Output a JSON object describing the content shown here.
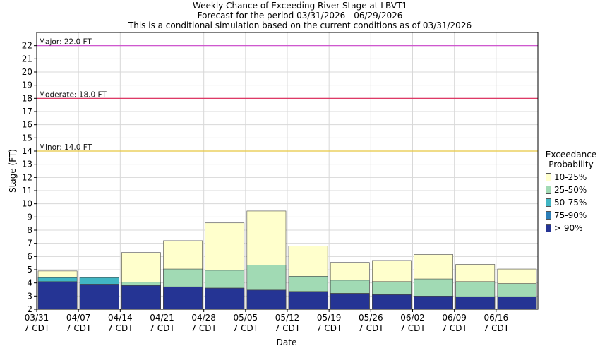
{
  "chart_data": {
    "type": "bar",
    "title": "Weekly Chance of Exceeding River Stage at LBVT1",
    "subtitle": "Forecast for the period 03/31/2026 - 06/29/2026",
    "subtitle2": "This is a conditional simulation based on the current conditions as of 03/31/2026",
    "xlabel": "Date",
    "ylabel": "Stage (FT)",
    "ylim": [
      2,
      23
    ],
    "yticks": [
      2,
      3,
      4,
      5,
      6,
      7,
      8,
      9,
      10,
      11,
      12,
      13,
      14,
      15,
      16,
      17,
      18,
      19,
      20,
      21,
      22
    ],
    "x_ticks": [
      {
        "line1": "03/31",
        "line2": "7 CDT"
      },
      {
        "line1": "04/07",
        "line2": "7 CDT"
      },
      {
        "line1": "04/14",
        "line2": "7 CDT"
      },
      {
        "line1": "04/21",
        "line2": "7 CDT"
      },
      {
        "line1": "04/28",
        "line2": "7 CDT"
      },
      {
        "line1": "05/05",
        "line2": "7 CDT"
      },
      {
        "line1": "05/12",
        "line2": "7 CDT"
      },
      {
        "line1": "05/19",
        "line2": "7 CDT"
      },
      {
        "line1": "05/26",
        "line2": "7 CDT"
      },
      {
        "line1": "06/02",
        "line2": "7 CDT"
      },
      {
        "line1": "06/09",
        "line2": "7 CDT"
      },
      {
        "line1": "06/16",
        "line2": "7 CDT"
      }
    ],
    "categories": [
      "03/31",
      "04/07",
      "04/14",
      "04/21",
      "04/28",
      "05/05",
      "05/12",
      "05/19",
      "05/26",
      "06/02",
      "06/09",
      "06/16"
    ],
    "series": [
      {
        "name": "> 90%",
        "color": "#253494",
        "values": [
          4.1,
          3.9,
          3.8,
          3.7,
          3.6,
          3.45,
          3.35,
          3.2,
          3.1,
          3.0,
          2.95,
          2.95
        ]
      },
      {
        "name": "75-90%",
        "color": "#2c7fb8",
        "values": [
          4.1,
          3.9,
          3.8,
          3.7,
          3.6,
          3.45,
          3.35,
          3.2,
          3.1,
          3.0,
          2.95,
          2.95
        ]
      },
      {
        "name": "50-75%",
        "color": "#41b6c4",
        "values": [
          4.4,
          4.4,
          3.85,
          3.7,
          3.6,
          3.45,
          3.35,
          3.2,
          3.1,
          3.0,
          2.95,
          2.95
        ]
      },
      {
        "name": "25-50%",
        "color": "#a1dab4",
        "values": [
          4.4,
          4.4,
          4.05,
          5.05,
          4.95,
          5.35,
          4.5,
          4.2,
          4.1,
          4.3,
          4.1,
          3.95
        ]
      },
      {
        "name": "10-25%",
        "color": "#ffffcc",
        "values": [
          4.9,
          4.4,
          6.3,
          7.2,
          8.55,
          9.45,
          6.8,
          5.55,
          5.7,
          6.15,
          5.4,
          5.05
        ]
      }
    ],
    "thresholds": [
      {
        "label": "Major: 22.0 FT",
        "value": 22.0,
        "color": "#cc44cc"
      },
      {
        "label": "Moderate: 18.0 FT",
        "value": 18.0,
        "color": "#dd2255"
      },
      {
        "label": "Minor: 14.0 FT",
        "value": 14.0,
        "color": "#e8c840"
      }
    ],
    "legend": {
      "title_line1": "Exceedance",
      "title_line2": "Probability",
      "position": "right",
      "items": [
        {
          "label": "10-25%",
          "color": "#ffffcc"
        },
        {
          "label": "25-50%",
          "color": "#a1dab4"
        },
        {
          "label": "50-75%",
          "color": "#41b6c4"
        },
        {
          "label": "75-90%",
          "color": "#2c7fb8"
        },
        {
          "label": "> 90%",
          "color": "#253494"
        }
      ]
    },
    "grid": true
  }
}
